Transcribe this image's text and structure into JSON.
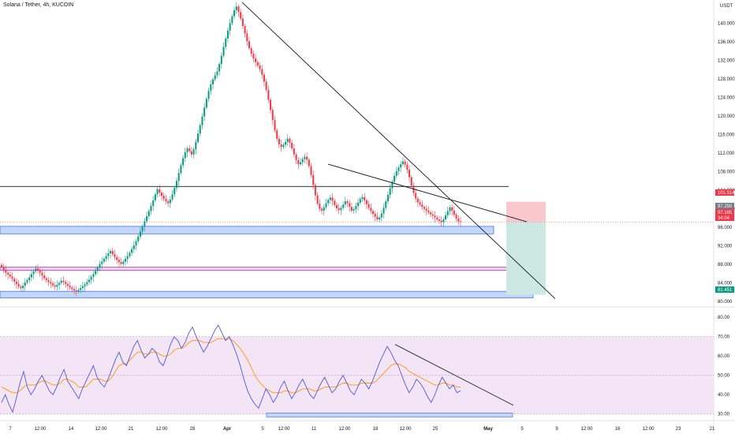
{
  "header": {
    "title": "Solana / Tether, 4h, KUCOIN"
  },
  "price_scale": {
    "currency": "USDT",
    "ticks": [
      140.0,
      136.0,
      132.0,
      128.0,
      124.0,
      120.0,
      116.0,
      112.0,
      108.0,
      104.0,
      100.0,
      96.0,
      92.0,
      88.0,
      84.0,
      80.0
    ],
    "tick_labels": [
      "140.000",
      "136.000",
      "132.000",
      "128.000",
      "124.000",
      "120.000",
      "116.000",
      "112.000",
      "108.000",
      "104.000",
      "100.000",
      "96.000",
      "92.000",
      "88.000",
      "84.000",
      "80.000"
    ],
    "badges": [
      {
        "label": "101.514",
        "value": 101.514,
        "color": "#f23645"
      },
      {
        "label": "97.250",
        "value": 97.25,
        "color": "#787b86"
      },
      {
        "label": "97.165",
        "value": 97.165,
        "color": "#f23645"
      },
      {
        "label": "34:04",
        "value": 96.4,
        "color": "#f23645"
      },
      {
        "label": "81.451",
        "value": 81.451,
        "color": "#089981"
      }
    ]
  },
  "rsi_scale": {
    "ticks": [
      80,
      70,
      60,
      50,
      40,
      30
    ],
    "tick_labels": [
      "80.00",
      "70.00",
      "60.00",
      "50.00",
      "40.00",
      "30.00"
    ]
  },
  "time_axis": {
    "labels": [
      "7",
      "12:00",
      "14",
      "12:00",
      "21",
      "12:00",
      "28",
      "Apr",
      "5",
      "12:00",
      "11",
      "12:00",
      "18",
      "12:00",
      "25",
      "May",
      "5",
      "9",
      "12:00",
      "16",
      "12:00",
      "23",
      "21"
    ]
  },
  "colors": {
    "up": "#089981",
    "down": "#f23645",
    "rsi": "#4e5ad9",
    "rsi_ma": "#ff9800",
    "rsi_band": "#f3e5f5",
    "zone_blue": "#c5d6fb",
    "zone_pink": "#f3d0ee",
    "sl": "#f9c8cc",
    "tp": "#cde8e2"
  },
  "chart_data": {
    "type": "candlestick",
    "title": "Solana / Tether, 4h, KUCOIN",
    "ylim": [
      79,
      145
    ],
    "rsi_ylim": [
      27,
      85
    ],
    "closes": [
      87.5,
      86.8,
      86.2,
      85.8,
      85.4,
      84.9,
      84.3,
      83.8,
      83.2,
      82.9,
      83.4,
      84.1,
      84.6,
      85.2,
      85.9,
      86.5,
      87.1,
      86.7,
      86.2,
      85.6,
      85.0,
      84.6,
      84.2,
      83.9,
      83.5,
      83.2,
      83.6,
      84.0,
      84.5,
      84.2,
      83.8,
      83.4,
      83.0,
      82.7,
      82.4,
      82.2,
      82.5,
      82.9,
      83.3,
      83.7,
      84.2,
      84.7,
      85.3,
      85.9,
      86.6,
      87.3,
      88.1,
      88.6,
      89.2,
      89.8,
      90.4,
      90.9,
      90.2,
      89.6,
      89.0,
      88.5,
      88.1,
      88.6,
      89.2,
      89.8,
      90.5,
      91.3,
      92.1,
      93.0,
      94.0,
      95.1,
      96.2,
      97.3,
      98.4,
      99.5,
      100.6,
      101.8,
      103.1,
      104.2,
      103.5,
      102.8,
      102.1,
      101.6,
      101.2,
      102.0,
      103.1,
      104.5,
      106.0,
      107.7,
      109.4,
      110.9,
      112.2,
      113.0,
      112.4,
      111.7,
      112.8,
      114.4,
      116.2,
      118.0,
      119.9,
      121.8,
      123.7,
      125.4,
      126.8,
      127.9,
      128.8,
      129.6,
      131.2,
      133.0,
      134.9,
      136.7,
      138.4,
      140.0,
      141.5,
      142.8,
      143.6,
      142.4,
      141.0,
      139.4,
      137.8,
      136.1,
      134.6,
      133.4,
      132.4,
      131.6,
      130.9,
      130.1,
      128.9,
      127.4,
      125.6,
      123.5,
      121.3,
      119.1,
      116.9,
      115.1,
      113.9,
      113.3,
      113.8,
      114.4,
      115.1,
      114.2,
      113.0,
      111.7,
      110.5,
      109.6,
      110.0,
      110.7,
      111.2,
      110.6,
      109.2,
      107.3,
      105.1,
      102.9,
      101.1,
      100.0,
      99.6,
      100.3,
      101.2,
      101.9,
      102.4,
      101.7,
      100.8,
      100.1,
      99.7,
      100.2,
      100.9,
      101.6,
      101.2,
      100.4,
      99.6,
      99.9,
      100.6,
      101.3,
      102.1,
      102.5,
      101.8,
      101.0,
      100.2,
      99.5,
      98.9,
      98.3,
      97.7,
      98.1,
      99.0,
      100.2,
      101.6,
      103.0,
      104.4,
      105.8,
      107.1,
      108.1,
      108.9,
      109.6,
      110.2,
      109.5,
      108.4,
      106.8,
      105.0,
      103.4,
      102.2,
      101.4,
      100.9,
      100.4,
      100.0,
      99.6,
      99.2,
      98.8,
      98.5,
      98.1,
      97.7,
      97.4,
      97.1,
      97.7,
      98.6,
      99.5,
      100.3,
      99.6,
      98.7,
      97.9,
      97.3,
      97.165
    ],
    "rsi": [
      36,
      40,
      35,
      31,
      38,
      46,
      52,
      44,
      40,
      43,
      47,
      50,
      46,
      42,
      40,
      44,
      49,
      53,
      47,
      44,
      41,
      38,
      43,
      47,
      51,
      55,
      49,
      46,
      44,
      48,
      53,
      58,
      62,
      57,
      55,
      60,
      65,
      68,
      63,
      59,
      61,
      64,
      62,
      57,
      55,
      60,
      66,
      70,
      68,
      64,
      67,
      72,
      75,
      70,
      66,
      62,
      65,
      69,
      73,
      76,
      72,
      68,
      70,
      66,
      61,
      55,
      48,
      42,
      38,
      35,
      33,
      38,
      43,
      40,
      36,
      39,
      44,
      47,
      42,
      38,
      41,
      45,
      48,
      44,
      40,
      38,
      42,
      46,
      49,
      45,
      41,
      43,
      47,
      50,
      46,
      42,
      40,
      44,
      48,
      46,
      43,
      47,
      52,
      57,
      61,
      65,
      62,
      58,
      55,
      50,
      45,
      41,
      44,
      48,
      46,
      43,
      39,
      36,
      40,
      45,
      49,
      46,
      43,
      45,
      41,
      42
    ],
    "rsi_ma": [
      44,
      43,
      42,
      41,
      41,
      42,
      44,
      45,
      45,
      45,
      46,
      47,
      47,
      46,
      45,
      45,
      46,
      48,
      48,
      47,
      46,
      44,
      44,
      44,
      46,
      48,
      48,
      48,
      47,
      47,
      49,
      52,
      55,
      56,
      56,
      58,
      60,
      62,
      62,
      61,
      61,
      62,
      62,
      61,
      60,
      60,
      61,
      63,
      64,
      64,
      65,
      67,
      68,
      68,
      68,
      67,
      67,
      67,
      68,
      69,
      69,
      69,
      69,
      68,
      66,
      64,
      61,
      58,
      54,
      50,
      47,
      45,
      43,
      42,
      41,
      41,
      41,
      42,
      42,
      41,
      41,
      42,
      43,
      43,
      43,
      42,
      42,
      43,
      44,
      44,
      44,
      44,
      45,
      46,
      46,
      45,
      45,
      45,
      46,
      46,
      46,
      46,
      47,
      49,
      51,
      53,
      55,
      56,
      56,
      55,
      54,
      52,
      51,
      50,
      49,
      48,
      47,
      46,
      45,
      45,
      46,
      46,
      45,
      45,
      44,
      44
    ]
  }
}
